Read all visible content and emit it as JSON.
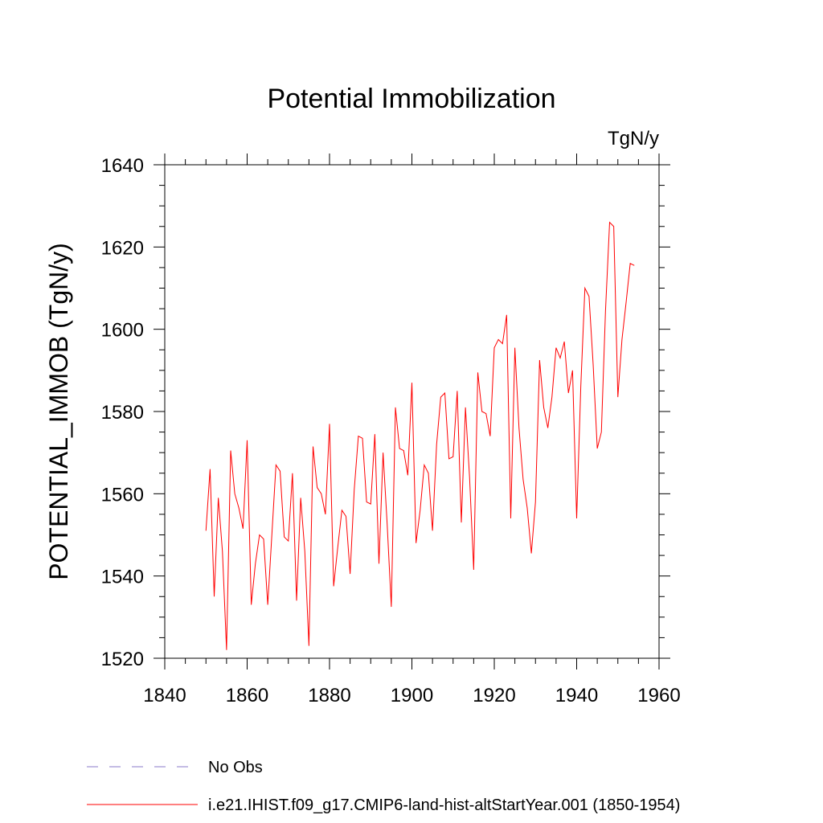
{
  "chart_data": {
    "type": "line",
    "title": "Potential Immobilization",
    "units_label": "TgN/y",
    "xlabel": "",
    "ylabel": "POTENTIAL_IMMOB  (TgN/y)",
    "xlim": [
      1840,
      1960
    ],
    "ylim": [
      1520,
      1640
    ],
    "x_ticks": [
      1840,
      1860,
      1880,
      1900,
      1920,
      1940,
      1960
    ],
    "y_ticks": [
      1520,
      1540,
      1560,
      1580,
      1600,
      1620,
      1640
    ],
    "x_minor_step": 5,
    "y_minor_step": 5,
    "grid": false,
    "legend_position": "bottom",
    "series": [
      {
        "name": "No Obs",
        "color": "#8878c8",
        "dash": "dashed",
        "x": [],
        "values": []
      },
      {
        "name": "i.e21.IHIST.f09_g17.CMIP6-land-hist-altStartYear.001 (1850-1954)",
        "color": "#ff0000",
        "dash": "solid",
        "x": [
          1850,
          1851,
          1852,
          1853,
          1854,
          1855,
          1856,
          1857,
          1858,
          1859,
          1860,
          1861,
          1862,
          1863,
          1864,
          1865,
          1866,
          1867,
          1868,
          1869,
          1870,
          1871,
          1872,
          1873,
          1874,
          1875,
          1876,
          1877,
          1878,
          1879,
          1880,
          1881,
          1882,
          1883,
          1884,
          1885,
          1886,
          1887,
          1888,
          1889,
          1890,
          1891,
          1892,
          1893,
          1894,
          1895,
          1896,
          1897,
          1898,
          1899,
          1900,
          1901,
          1902,
          1903,
          1904,
          1905,
          1906,
          1907,
          1908,
          1909,
          1910,
          1911,
          1912,
          1913,
          1914,
          1915,
          1916,
          1917,
          1918,
          1919,
          1920,
          1921,
          1922,
          1923,
          1924,
          1925,
          1926,
          1927,
          1928,
          1929,
          1930,
          1931,
          1932,
          1933,
          1934,
          1935,
          1936,
          1937,
          1938,
          1939,
          1940,
          1941,
          1942,
          1943,
          1944,
          1945,
          1946,
          1947,
          1948,
          1949,
          1950,
          1951,
          1952,
          1953,
          1954
        ],
        "values": [
          1551,
          1566,
          1535,
          1559,
          1546,
          1522,
          1570.5,
          1560,
          1556.5,
          1551.5,
          1573,
          1533,
          1543,
          1550,
          1549,
          1533,
          1550,
          1567,
          1565.5,
          1549.5,
          1548.5,
          1565,
          1534,
          1559,
          1546,
          1523,
          1571.5,
          1561.5,
          1560,
          1555,
          1577,
          1537.5,
          1547,
          1556,
          1554.5,
          1540.5,
          1561,
          1574,
          1573.5,
          1558,
          1557.5,
          1574.5,
          1543,
          1570,
          1552.5,
          1532.5,
          1581,
          1571,
          1570.5,
          1564.5,
          1587,
          1548,
          1556,
          1567,
          1565,
          1551,
          1572,
          1583.5,
          1584.5,
          1568.5,
          1569,
          1585,
          1553,
          1581,
          1564,
          1541.5,
          1589.5,
          1580,
          1579.5,
          1574,
          1595.5,
          1597.5,
          1596.5,
          1603.5,
          1554,
          1595.5,
          1576,
          1563.5,
          1556.5,
          1545.5,
          1558,
          1592.5,
          1581,
          1576,
          1583.5,
          1595.5,
          1593,
          1597,
          1584.5,
          1590,
          1554,
          1586,
          1610,
          1608,
          1591.5,
          1571,
          1575,
          1604.5,
          1626,
          1625,
          1583.5,
          1597.5,
          1606.5,
          1616,
          1615.5
        ]
      }
    ]
  }
}
